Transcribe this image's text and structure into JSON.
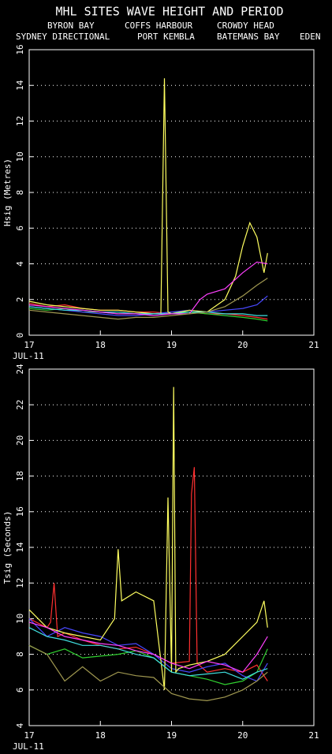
{
  "chart_data": [
    {
      "type": "line",
      "title": "MHL SITES WAVE HEIGHT AND PERIOD",
      "ylabel": "Hsig (Metres)",
      "xlabel": "JUL-11",
      "xlim": [
        17,
        21
      ],
      "xticks": [
        17,
        18,
        19,
        20,
        21
      ],
      "ylim": [
        0,
        16
      ],
      "yticks": [
        0,
        2,
        4,
        6,
        8,
        10,
        12,
        14,
        16
      ],
      "grid": true,
      "series": [
        {
          "name": "BYRON BAY",
          "color": "#ff3030",
          "x": [
            17,
            17.25,
            17.5,
            17.75,
            18,
            18.25,
            18.5,
            18.75,
            19,
            19.25,
            19.5,
            19.75,
            20,
            20.2,
            20.35
          ],
          "values": [
            1.8,
            1.6,
            1.7,
            1.5,
            1.4,
            1.4,
            1.3,
            1.3,
            1.2,
            1.3,
            1.2,
            1.2,
            1.1,
            1.0,
            0.9
          ]
        },
        {
          "name": "COFFS HARBOUR",
          "color": "#30d030",
          "x": [
            17,
            17.25,
            17.5,
            17.75,
            18,
            18.25,
            18.5,
            18.75,
            19,
            19.25,
            19.5,
            19.75,
            20,
            20.2,
            20.35
          ],
          "values": [
            1.5,
            1.4,
            1.5,
            1.3,
            1.3,
            1.2,
            1.2,
            1.2,
            1.3,
            1.3,
            1.2,
            1.1,
            1.0,
            0.9,
            0.8
          ]
        },
        {
          "name": "CROWDY HEAD",
          "color": "#4848ff",
          "x": [
            17,
            17.25,
            17.5,
            17.75,
            18,
            18.25,
            18.5,
            18.75,
            19,
            19.25,
            19.5,
            19.75,
            20,
            20.2,
            20.35
          ],
          "values": [
            1.6,
            1.5,
            1.4,
            1.3,
            1.2,
            1.1,
            1.1,
            1.2,
            1.3,
            1.4,
            1.3,
            1.4,
            1.5,
            1.7,
            2.2
          ]
        },
        {
          "name": "SYDNEY DIRECTIONAL",
          "color": "#ffff60",
          "x": [
            17,
            17.25,
            17.5,
            17.75,
            18,
            18.25,
            18.5,
            18.75,
            18.85,
            18.9,
            18.95,
            19,
            19.25,
            19.5,
            19.75,
            19.9,
            20,
            20.1,
            20.2,
            20.3,
            20.35
          ],
          "values": [
            1.9,
            1.7,
            1.6,
            1.5,
            1.4,
            1.4,
            1.3,
            1.2,
            1.2,
            14.4,
            1.3,
            1.2,
            1.4,
            1.3,
            2.0,
            3.3,
            5.0,
            6.3,
            5.5,
            3.5,
            4.6
          ]
        },
        {
          "name": "PORT KEMBLA",
          "color": "#40e0e0",
          "x": [
            17,
            17.25,
            17.5,
            17.75,
            18,
            18.25,
            18.5,
            18.75,
            19,
            19.25,
            19.5,
            19.75,
            20,
            20.2,
            20.35
          ],
          "values": [
            1.6,
            1.5,
            1.4,
            1.4,
            1.3,
            1.3,
            1.2,
            1.2,
            1.2,
            1.3,
            1.3,
            1.2,
            1.2,
            1.1,
            1.1
          ]
        },
        {
          "name": "BATEMANS BAY",
          "color": "#ff40ff",
          "x": [
            17,
            17.25,
            17.5,
            17.75,
            18,
            18.25,
            18.5,
            18.75,
            19,
            19.25,
            19.4,
            19.5,
            19.75,
            20,
            20.2,
            20.35
          ],
          "values": [
            1.7,
            1.6,
            1.5,
            1.4,
            1.3,
            1.2,
            1.2,
            1.1,
            1.2,
            1.2,
            2.0,
            2.3,
            2.6,
            3.5,
            4.1,
            4.0
          ]
        },
        {
          "name": "EDEN",
          "color": "#a09850",
          "x": [
            17,
            17.25,
            17.5,
            17.75,
            18,
            18.25,
            18.5,
            18.75,
            19,
            19.25,
            19.5,
            19.75,
            20,
            20.2,
            20.35
          ],
          "values": [
            1.4,
            1.3,
            1.2,
            1.1,
            1.0,
            0.9,
            1.0,
            1.0,
            1.1,
            1.2,
            1.3,
            1.6,
            2.2,
            2.8,
            3.2
          ]
        }
      ]
    },
    {
      "type": "line",
      "ylabel": "Tsig (Seconds)",
      "xlabel": "JUL-11",
      "xlim": [
        17,
        21
      ],
      "xticks": [
        17,
        18,
        19,
        20,
        21
      ],
      "ylim": [
        4,
        24
      ],
      "yticks": [
        4,
        6,
        8,
        10,
        12,
        14,
        16,
        18,
        20,
        22,
        24
      ],
      "grid": true,
      "series": [
        {
          "color": "#ff3030",
          "x": [
            17,
            17.25,
            17.3,
            17.35,
            17.4,
            17.5,
            17.75,
            18,
            18.25,
            18.5,
            18.75,
            19,
            19.25,
            19.28,
            19.32,
            19.36,
            19.5,
            19.75,
            20,
            20.2,
            20.35
          ],
          "values": [
            10,
            9.5,
            9.8,
            12,
            9.0,
            9.2,
            8.8,
            8.5,
            8.3,
            8.4,
            8.0,
            7.5,
            7.6,
            17,
            18.5,
            7.5,
            7.0,
            7.2,
            7.0,
            7.4,
            6.5
          ]
        },
        {
          "color": "#30d030",
          "x": [
            17,
            17.25,
            17.5,
            17.75,
            18,
            18.25,
            18.5,
            18.75,
            19,
            19.25,
            19.5,
            19.75,
            20,
            20.2,
            20.35
          ],
          "values": [
            8.5,
            8.0,
            8.3,
            7.8,
            7.9,
            8.0,
            8.2,
            7.8,
            7.0,
            6.8,
            6.6,
            6.3,
            6.5,
            7.0,
            8.3
          ]
        },
        {
          "color": "#4848ff",
          "x": [
            17,
            17.25,
            17.5,
            17.75,
            18,
            18.25,
            18.5,
            18.75,
            19,
            19.25,
            19.5,
            19.75,
            20,
            20.2,
            20.35
          ],
          "values": [
            10,
            9.0,
            9.5,
            9.2,
            9.0,
            8.5,
            8.6,
            8.0,
            7.2,
            7.0,
            7.3,
            7.5,
            6.8,
            6.5,
            7.5
          ]
        },
        {
          "color": "#ffff60",
          "x": [
            17,
            17.25,
            17.5,
            17.75,
            18,
            18.2,
            18.25,
            18.3,
            18.5,
            18.75,
            18.9,
            18.95,
            19,
            19.03,
            19.06,
            19.1,
            19.25,
            19.5,
            19.75,
            20,
            20.2,
            20.3,
            20.35
          ],
          "values": [
            10.5,
            9.5,
            9.2,
            9.0,
            8.8,
            10,
            13.9,
            11,
            11.5,
            11,
            6,
            16.8,
            7,
            23,
            7,
            7.2,
            7.4,
            7.6,
            8.0,
            9.0,
            9.8,
            11,
            9.5
          ]
        },
        {
          "color": "#40e0e0",
          "x": [
            17,
            17.25,
            17.5,
            17.75,
            18,
            18.25,
            18.5,
            18.75,
            19,
            19.25,
            19.5,
            19.75,
            20,
            20.2,
            20.35
          ],
          "values": [
            9.5,
            9.0,
            8.8,
            8.5,
            8.5,
            8.3,
            8.0,
            7.8,
            7.0,
            6.8,
            6.9,
            7.0,
            6.6,
            7.0,
            7.2
          ]
        },
        {
          "color": "#ff40ff",
          "x": [
            17,
            17.25,
            17.5,
            17.75,
            18,
            18.25,
            18.5,
            18.75,
            19,
            19.25,
            19.5,
            19.75,
            20,
            20.2,
            20.35
          ],
          "values": [
            9.8,
            9.5,
            9.0,
            8.8,
            8.6,
            8.5,
            8.2,
            8.0,
            7.5,
            7.2,
            7.6,
            7.4,
            7.0,
            8.0,
            9.0
          ]
        },
        {
          "color": "#a09850",
          "x": [
            17,
            17.25,
            17.5,
            17.75,
            18,
            18.25,
            18.5,
            18.75,
            19,
            19.25,
            19.5,
            19.75,
            20,
            20.2,
            20.35
          ],
          "values": [
            8.5,
            8.0,
            6.5,
            7.3,
            6.5,
            7.0,
            6.8,
            6.7,
            5.8,
            5.5,
            5.4,
            5.6,
            6.0,
            6.5,
            7.0
          ]
        }
      ]
    }
  ]
}
